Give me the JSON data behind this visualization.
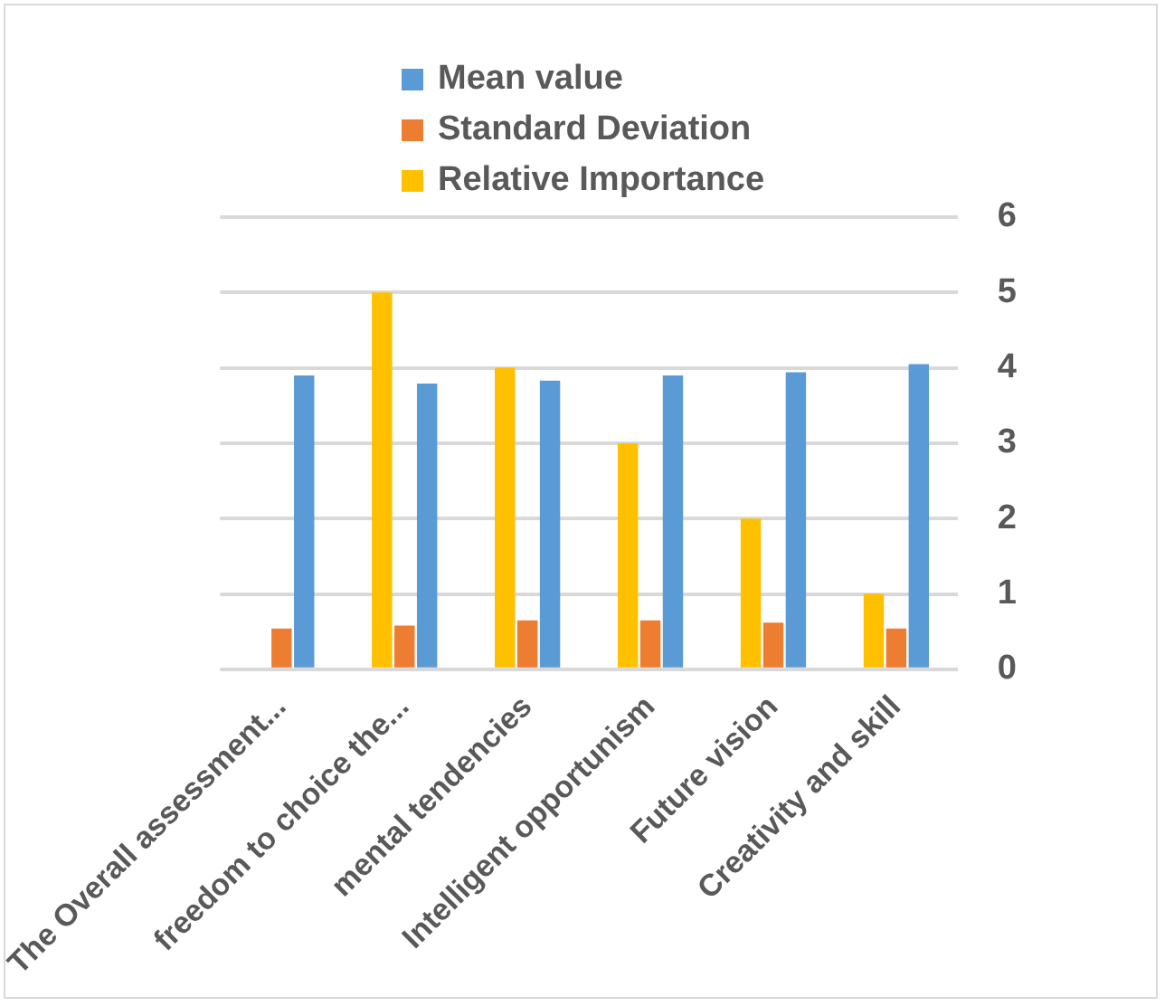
{
  "chart_data": {
    "type": "bar",
    "categories": [
      "The Overall assessment...",
      "freedom to choice the...",
      "mental tendencies",
      "Intelligent opportunism",
      "Future vision",
      "Creativity and skill"
    ],
    "series": [
      {
        "name": "Mean value",
        "color": "#5b9bd5",
        "values": [
          3.9,
          3.79,
          3.83,
          3.9,
          3.94,
          4.05
        ]
      },
      {
        "name": "Standard Deviation",
        "color": "#ed7d31",
        "values": [
          0.54,
          0.58,
          0.65,
          0.65,
          0.62,
          0.54
        ]
      },
      {
        "name": "Relative Importance",
        "color": "#ffc000",
        "values": [
          null,
          5,
          4,
          3,
          2,
          1
        ]
      }
    ],
    "ylim": [
      0,
      6
    ],
    "yticks": [
      0,
      1,
      2,
      3,
      4,
      5,
      6
    ],
    "grid": "y",
    "legend": "top"
  }
}
